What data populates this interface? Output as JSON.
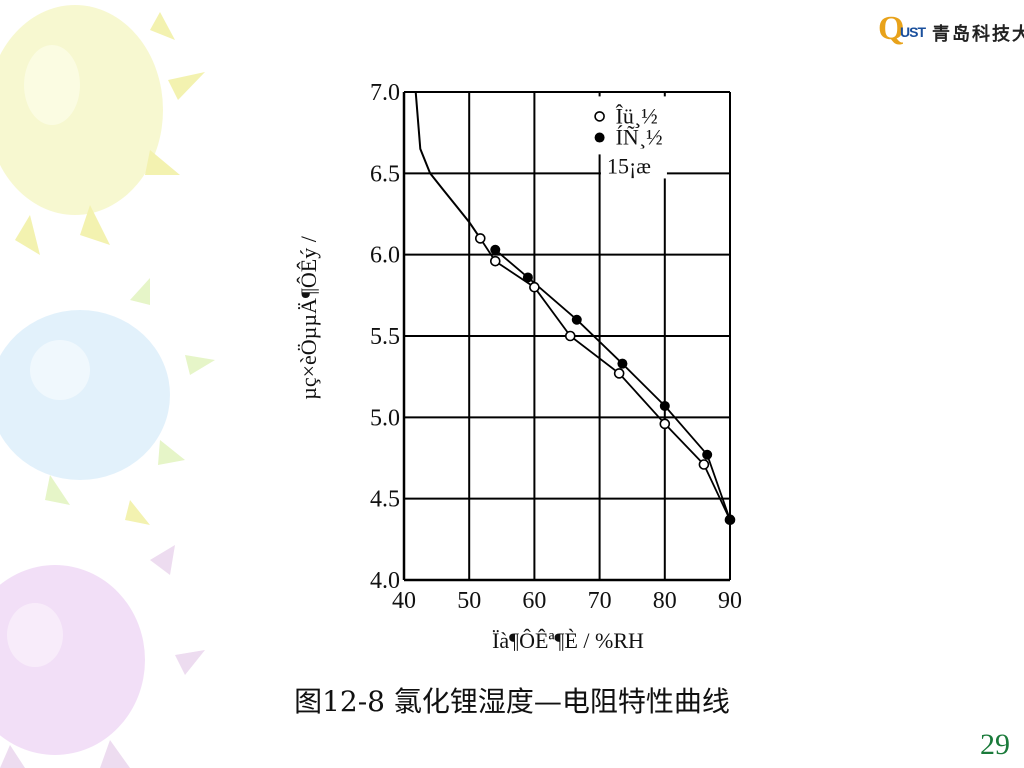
{
  "logo": {
    "letters_q": "Q",
    "letters_ust": "UST",
    "name": "青岛科技大学"
  },
  "caption": "图12-8 氯化锂湿度—电阻特性曲线",
  "page_number": "29",
  "chart_data": {
    "type": "line",
    "title": "",
    "xlabel": "Ïà¶ÔÊª¶È / %RH",
    "ylabel": "µç×èÖµµÄ¶ÔÊý /",
    "xlim": [
      40,
      90
    ],
    "ylim": [
      4.0,
      7.0
    ],
    "x_ticks": [
      40,
      50,
      60,
      70,
      80,
      90
    ],
    "y_ticks": [
      4.0,
      4.5,
      5.0,
      5.5,
      6.0,
      6.5,
      7.0
    ],
    "x_tick_labels": [
      "40",
      "50",
      "60",
      "70",
      "80",
      "90"
    ],
    "y_tick_labels": [
      "4.0",
      "4.5",
      "5.0",
      "5.5",
      "6.0",
      "6.5",
      "7.0"
    ],
    "grid": true,
    "legend_position": "top-right",
    "annotation": "15¡æ",
    "series": [
      {
        "name": "Îü¸½",
        "marker": "open-circle",
        "points": [
          [
            51.7,
            6.1
          ],
          [
            54,
            5.96
          ],
          [
            60,
            5.8
          ],
          [
            65.5,
            5.5
          ],
          [
            73,
            5.27
          ],
          [
            80,
            4.96
          ],
          [
            86,
            4.71
          ],
          [
            90,
            4.37
          ]
        ]
      },
      {
        "name": "ÍÑ¸½",
        "marker": "filled-circle",
        "points": [
          [
            54,
            6.03
          ],
          [
            59,
            5.86
          ],
          [
            66.5,
            5.6
          ],
          [
            73.5,
            5.33
          ],
          [
            80,
            5.07
          ],
          [
            86.5,
            4.77
          ],
          [
            90,
            4.37
          ]
        ]
      }
    ],
    "upper_curve": [
      [
        41.8,
        7.0
      ],
      [
        42.5,
        6.65
      ],
      [
        44,
        6.5
      ],
      [
        46,
        6.4
      ],
      [
        48,
        6.3
      ],
      [
        50,
        6.2
      ],
      [
        51.7,
        6.1
      ]
    ]
  }
}
